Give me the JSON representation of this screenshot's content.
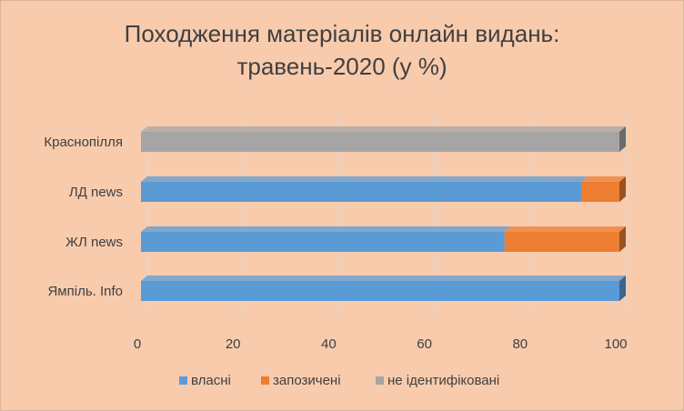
{
  "chart_data": {
    "type": "bar",
    "orientation": "horizontal",
    "stacked": true,
    "title_line1": "Походження матеріалів онлайн видань:",
    "title_line2": "травень-2020 (у %)",
    "categories": [
      "Ямпіль. Info",
      "ЖЛ news",
      "ЛД news",
      "Краснопілля"
    ],
    "series": [
      {
        "name": "власні",
        "values": [
          100,
          76,
          92,
          0
        ],
        "color": "#5b9bd5"
      },
      {
        "name": "запозичені",
        "values": [
          0,
          24,
          8,
          0
        ],
        "color": "#ed7d31"
      },
      {
        "name": "не ідентифіковані",
        "values": [
          0,
          0,
          0,
          100
        ],
        "color": "#a5a5a5"
      }
    ],
    "xlim": [
      0,
      100
    ],
    "xticks": [
      "0",
      "20",
      "40",
      "60",
      "80",
      "100"
    ],
    "grid": true,
    "legend_position": "bottom",
    "background_color": "#f8cbad"
  }
}
